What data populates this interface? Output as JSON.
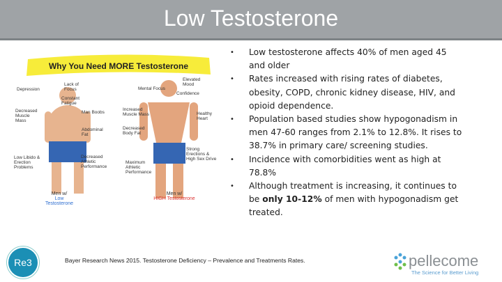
{
  "header": {
    "title": "Low Testosterone"
  },
  "figure": {
    "title": "Why You Need MORE Testosterone",
    "low_labels": [
      "Depression",
      "Lack of Focus",
      "Constant Fatigue",
      "Decreased Muscle Mass",
      "Man Boobs",
      "Abdominal Fat",
      "Low Libido & Erection Problems",
      "Decreased Athletic Performance"
    ],
    "high_labels": [
      "Mental Focus",
      "Elevated Mood",
      "Confidence",
      "Increased Muscle Mass",
      "Healthy Heart",
      "Decreased Body Fat",
      "Strong Erections & High Sex Drive",
      "Maximum Athletic Performance"
    ],
    "low_caption": {
      "line1": "Men w/",
      "line2": "Low Testosterone"
    },
    "high_caption": {
      "line1": "Men w/",
      "line2": "HIGH Testosterone"
    }
  },
  "bullets": [
    "Low testosterone affects 40% of men aged 45 and older",
    "Rates increased with rising rates of diabetes, obesity, COPD, chronic kidney disease, HIV, and opioid dependence.",
    "Population based studies show hypogonadism in men 47-60 ranges from 2.1% to 12.8%. It rises to 38.7% in primary care/ screening studies.",
    "Incidence with comorbidities went as high at 78.8%",
    {
      "start": "Although treatment is increasing, it continues to be ",
      "bold": "only 10-12%",
      "end": " of men with hypogonadism get treated."
    }
  ],
  "citation": "Bayer Research News 2015. Testosterone Deficiency – Prevalence and Treatments Rates.",
  "logos": {
    "left": "Re3",
    "right": "pellecome",
    "tagline": "The Science for Better Living"
  }
}
